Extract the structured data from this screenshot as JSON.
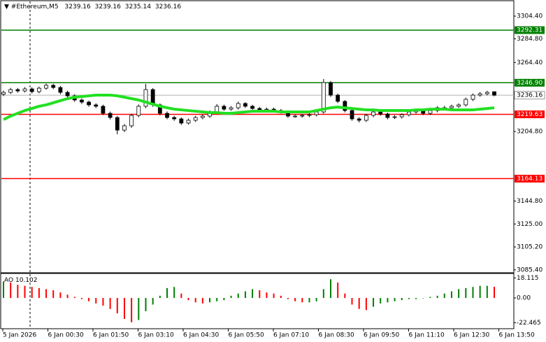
{
  "chart_data": {
    "type": "candlestick",
    "title": "#Ethereum,M5",
    "open": [
      3237.0,
      3238.6,
      3241.0,
      3239.8,
      3241.6,
      3239.2,
      3242.2,
      3244.7,
      3242.8,
      3238.6,
      3235.6,
      3232.0,
      3230.2,
      3227.8,
      3226.6,
      3220.5,
      3216.9,
      3206.0,
      3209.7,
      3218.7,
      3226.6,
      3241.0,
      3227.8,
      3220.5,
      3216.9,
      3215.7,
      3212.1,
      3214.5,
      3216.9,
      3218.1,
      3221.7,
      3226.6,
      3224.1,
      3225.3,
      3229.0,
      3226.6,
      3224.7,
      3223.5,
      3224.1,
      3222.9,
      3221.7,
      3218.1,
      3218.1,
      3218.7,
      3219.3,
      3221.7,
      3247.1,
      3236.2,
      3230.8,
      3222.9,
      3215.7,
      3214.5,
      3218.7,
      3221.7,
      3219.9,
      3216.9,
      3217.5,
      3219.3,
      3221.7,
      3222.9,
      3220.5,
      3222.9,
      3225.3,
      3225.3,
      3226.6,
      3227.8,
      3232.6,
      3236.2,
      3237.4,
      3239.16
    ],
    "high": [
      3240.1,
      3242.5,
      3242.4,
      3243.1,
      3243.0,
      3243.6,
      3246.2,
      3246.0,
      3244.1,
      3240.0,
      3237.0,
      3233.4,
      3231.5,
      3229.2,
      3228.0,
      3222.0,
      3218.2,
      3211.3,
      3220.0,
      3228.1,
      3245.9,
      3242.3,
      3229.0,
      3222.1,
      3218.4,
      3217.0,
      3216.0,
      3218.3,
      3219.6,
      3223.0,
      3228.5,
      3228.0,
      3226.8,
      3230.6,
      3230.2,
      3227.9,
      3226.0,
      3225.4,
      3225.5,
      3224.2,
      3223.1,
      3219.5,
      3220.0,
      3220.6,
      3223.0,
      3250.1,
      3248.4,
      3237.5,
      3232.0,
      3224.1,
      3217.2,
      3220.1,
      3223.0,
      3223.2,
      3221.1,
      3218.9,
      3220.5,
      3223.1,
      3224.3,
      3224.0,
      3224.4,
      3226.7,
      3226.9,
      3228.0,
      3229.1,
      3234.0,
      3237.6,
      3238.9,
      3240.0,
      3239.16
    ],
    "low": [
      3235.4,
      3237.2,
      3238.3,
      3238.5,
      3237.6,
      3237.8,
      3240.9,
      3241.3,
      3237.0,
      3234.1,
      3230.4,
      3228.6,
      3226.2,
      3225.0,
      3219.0,
      3215.2,
      3202.4,
      3204.3,
      3208.0,
      3217.1,
      3225.0,
      3226.1,
      3218.8,
      3215.4,
      3214.0,
      3210.5,
      3210.8,
      3213.0,
      3215.4,
      3216.6,
      3220.2,
      3222.6,
      3222.7,
      3223.8,
      3225.1,
      3223.2,
      3222.0,
      3222.1,
      3221.4,
      3220.3,
      3216.6,
      3216.7,
      3216.8,
      3217.2,
      3217.9,
      3220.3,
      3234.6,
      3229.3,
      3221.3,
      3214.1,
      3212.6,
      3213.0,
      3217.1,
      3218.4,
      3215.3,
      3215.6,
      3216.0,
      3217.8,
      3220.2,
      3219.0,
      3219.1,
      3221.4,
      3223.9,
      3224.0,
      3225.2,
      3226.4,
      3231.1,
      3234.8,
      3236.0,
      3235.14
    ],
    "close": [
      3238.6,
      3241.0,
      3239.8,
      3241.6,
      3239.2,
      3242.2,
      3244.7,
      3242.8,
      3238.6,
      3235.6,
      3232.0,
      3230.2,
      3227.8,
      3226.6,
      3220.5,
      3216.9,
      3206.0,
      3209.7,
      3218.7,
      3226.6,
      3241.0,
      3227.8,
      3220.5,
      3216.9,
      3215.7,
      3212.1,
      3214.5,
      3216.9,
      3218.1,
      3221.7,
      3226.6,
      3224.1,
      3225.3,
      3229.0,
      3226.6,
      3224.7,
      3223.5,
      3224.1,
      3222.9,
      3221.7,
      3218.1,
      3218.1,
      3218.7,
      3219.3,
      3221.7,
      3247.1,
      3236.2,
      3230.8,
      3222.9,
      3215.7,
      3214.5,
      3218.7,
      3221.7,
      3219.9,
      3216.9,
      3217.5,
      3219.3,
      3221.7,
      3222.9,
      3220.5,
      3222.9,
      3225.3,
      3225.3,
      3226.6,
      3227.8,
      3232.6,
      3236.2,
      3237.4,
      3238.6,
      3236.16
    ],
    "ma": {
      "color": "#22e022",
      "values": [
        3215.1,
        3218.1,
        3220.5,
        3222.9,
        3224.7,
        3226.6,
        3227.8,
        3229.6,
        3231.4,
        3233.2,
        3234.4,
        3235.0,
        3235.6,
        3236.2,
        3236.2,
        3236.2,
        3235.6,
        3234.4,
        3233.2,
        3232.0,
        3230.2,
        3228.4,
        3226.6,
        3225.3,
        3224.1,
        3223.5,
        3222.9,
        3222.3,
        3221.7,
        3221.1,
        3221.1,
        3220.5,
        3220.5,
        3221.1,
        3221.7,
        3222.3,
        3222.3,
        3222.3,
        3222.3,
        3221.7,
        3221.7,
        3221.7,
        3221.7,
        3221.7,
        3222.9,
        3224.1,
        3225.3,
        3225.9,
        3225.3,
        3224.7,
        3224.1,
        3223.5,
        3223.5,
        3222.9,
        3222.9,
        3222.9,
        3222.9,
        3222.9,
        3223.5,
        3223.5,
        3224.1,
        3224.1,
        3224.1,
        3223.5,
        3223.5,
        3223.5,
        3223.5,
        3224.1,
        3224.7,
        3225.3
      ]
    },
    "levels": [
      {
        "value": 3292.31,
        "color": "#008000"
      },
      {
        "value": 3246.9,
        "label": "3246.90",
        "color": "#008000"
      },
      {
        "value": 3219.63,
        "color": "#ff0000"
      },
      {
        "value": 3164.13,
        "color": "#ff0000"
      }
    ],
    "ylim": [
      3082.9,
      3317.1
    ],
    "yticks": [
      {
        "value": 3304.4,
        "label": "3304.40"
      },
      {
        "value": 3284.8,
        "label": "3284.80"
      },
      {
        "value": 3264.4,
        "label": "3264.40"
      },
      {
        "value": 3204.8,
        "label": "3204.80"
      },
      {
        "value": 3144.8,
        "label": "3144.80"
      },
      {
        "value": 3125,
        "label": "3125.00"
      },
      {
        "value": 3105.2,
        "label": "3105.20"
      },
      {
        "value": 3085.4,
        "label": "3085.40"
      }
    ],
    "x_labels": [
      "5 Jan 2026",
      "6 Jan 00:30",
      "6 Jan 01:50",
      "6 Jan 03:10",
      "6 Jan 04:30",
      "6 Jan 05:50",
      "6 Jan 07:10",
      "6 Jan 08:30",
      "6 Jan 09:50",
      "6 Jan 11:10",
      "6 Jan 12:30",
      "6 Jan 13:50"
    ],
    "indicator": {
      "name": "AO",
      "up_color": "#008000",
      "down_color": "#ff0000",
      "values": [
        15,
        14,
        12,
        11,
        10,
        9,
        8,
        7,
        5,
        3,
        1,
        -1,
        -3,
        -5,
        -7,
        -10,
        -14,
        -19,
        -22,
        -20,
        -12,
        -6,
        2,
        9,
        10,
        4,
        -2,
        -4,
        -5,
        -4,
        -3,
        -2,
        2,
        4,
        6,
        8,
        7,
        5,
        4,
        2,
        -1,
        -3,
        -4,
        -4,
        -3,
        8,
        17,
        14,
        4,
        -6,
        -10,
        -11,
        -8,
        -5,
        -4,
        -3,
        -2,
        -1,
        -1,
        0,
        1,
        2,
        4,
        6,
        8,
        9,
        10,
        11,
        11,
        10.102
      ],
      "ylim": [
        -27.9,
        21.6
      ],
      "yticks": [
        18.115,
        {
          "value": 0,
          "label": "0.00"
        },
        -22.465
      ]
    }
  }
}
